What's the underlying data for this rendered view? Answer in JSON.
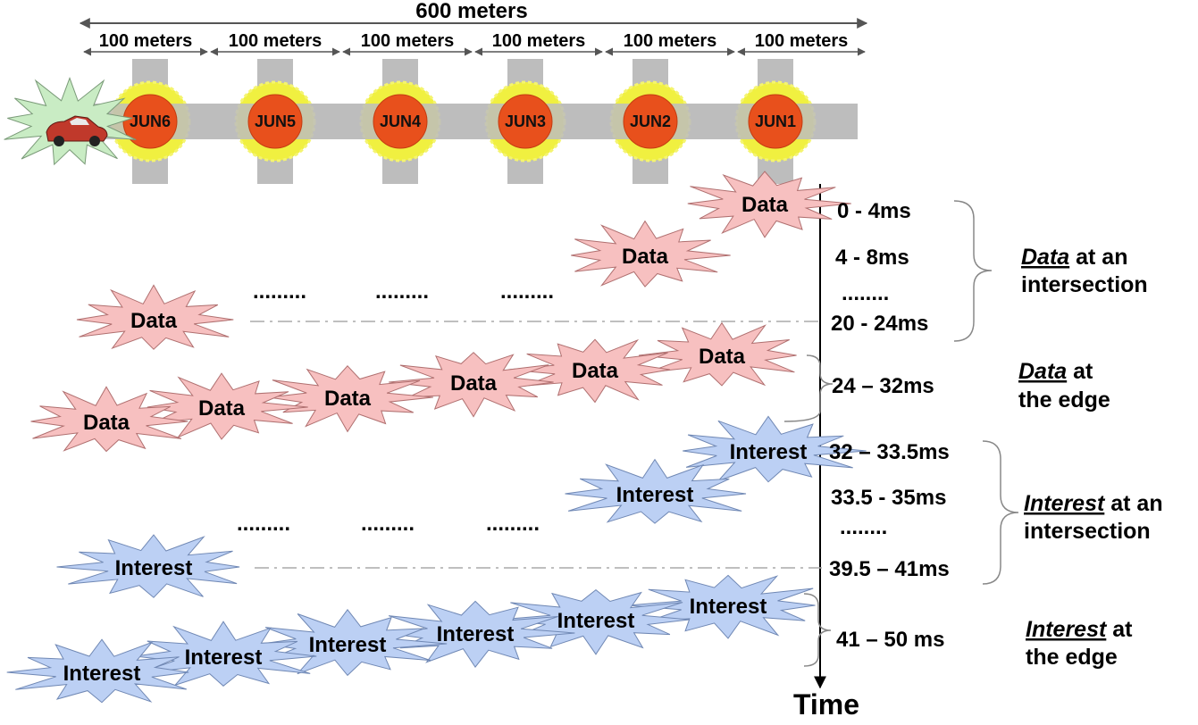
{
  "dimensions": {
    "total": "600 meters",
    "segment": "100 meters"
  },
  "junctions": [
    "JUN6",
    "JUN5",
    "JUN4",
    "JUN3",
    "JUN2",
    "JUN1"
  ],
  "packets": {
    "data": "Data",
    "interest": "Interest"
  },
  "dots": ".........",
  "times": {
    "t1": "0 - 4ms",
    "t2": "4 - 8ms",
    "t_dots1": "........",
    "t3": "20 - 24ms",
    "t4": "24 – 32ms",
    "t5": "32 – 33.5ms",
    "t6": "33.5 - 35ms",
    "t_dots2": "........",
    "t7": "39.5 – 41ms",
    "t8": "41 – 50 ms"
  },
  "groups": {
    "data_intersection": {
      "em": "Data",
      "rest": " at an",
      "line2": "intersection"
    },
    "data_edge": {
      "em": "Data",
      "rest": " at",
      "line2": "the edge"
    },
    "interest_intersection": {
      "em": "Interest",
      "rest": " at an",
      "line2": "intersection"
    },
    "interest_edge": {
      "em": "Interest",
      "rest": " at",
      "line2": "the edge"
    }
  },
  "axis": {
    "title": "Time"
  },
  "colors": {
    "road": "#bdbdbd",
    "junction": "#e8501c",
    "junction_halo": "#f0f040",
    "data_burst": "#f7c0c0",
    "interest_burst": "#bcd0f4",
    "vehicle_burst": "#c9ecc4",
    "vehicle": "#c0392b"
  }
}
